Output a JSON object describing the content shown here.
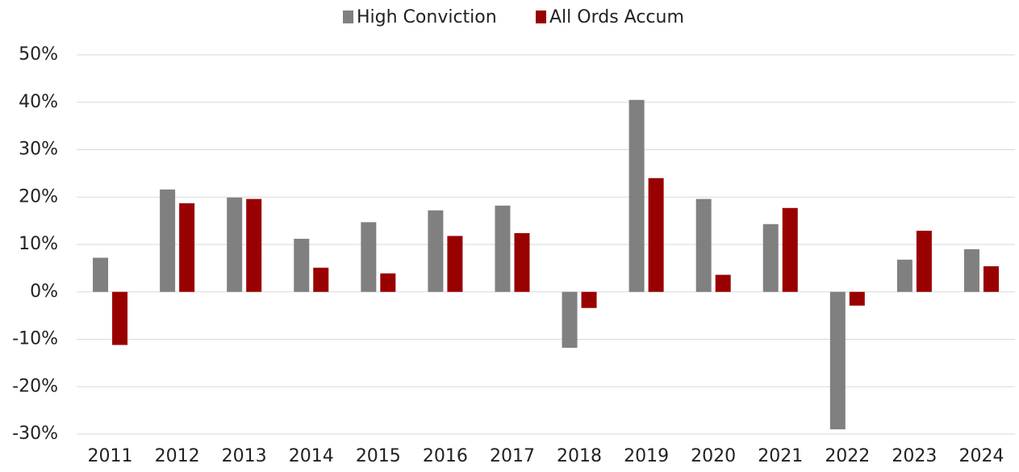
{
  "chart_data": {
    "type": "bar",
    "categories": [
      "2011",
      "2012",
      "2013",
      "2014",
      "2015",
      "2016",
      "2017",
      "2018",
      "2019",
      "2020",
      "2021",
      "2022",
      "2023",
      "2024"
    ],
    "series": [
      {
        "name": "High Conviction",
        "color": "#808080",
        "values": [
          7.2,
          21.6,
          19.9,
          11.2,
          14.7,
          17.2,
          18.2,
          -11.8,
          40.5,
          19.6,
          14.3,
          -29.0,
          6.8,
          9.0
        ]
      },
      {
        "name": "All Ords Accum",
        "color": "#990000",
        "values": [
          -11.2,
          18.7,
          19.6,
          5.1,
          3.9,
          11.8,
          12.4,
          -3.4,
          24.0,
          3.6,
          17.7,
          -2.9,
          12.9,
          5.4
        ]
      }
    ],
    "ylim": [
      -30,
      50
    ],
    "yticks": [
      {
        "value": -30,
        "label": "-30%"
      },
      {
        "value": -20,
        "label": "-20%"
      },
      {
        "value": -10,
        "label": "-10%"
      },
      {
        "value": 0,
        "label": "0%"
      },
      {
        "value": 10,
        "label": "10%"
      },
      {
        "value": 20,
        "label": "20%"
      },
      {
        "value": 30,
        "label": "30%"
      },
      {
        "value": 40,
        "label": "40%"
      },
      {
        "value": 50,
        "label": "50%"
      }
    ],
    "grid": true,
    "legend": "top"
  }
}
